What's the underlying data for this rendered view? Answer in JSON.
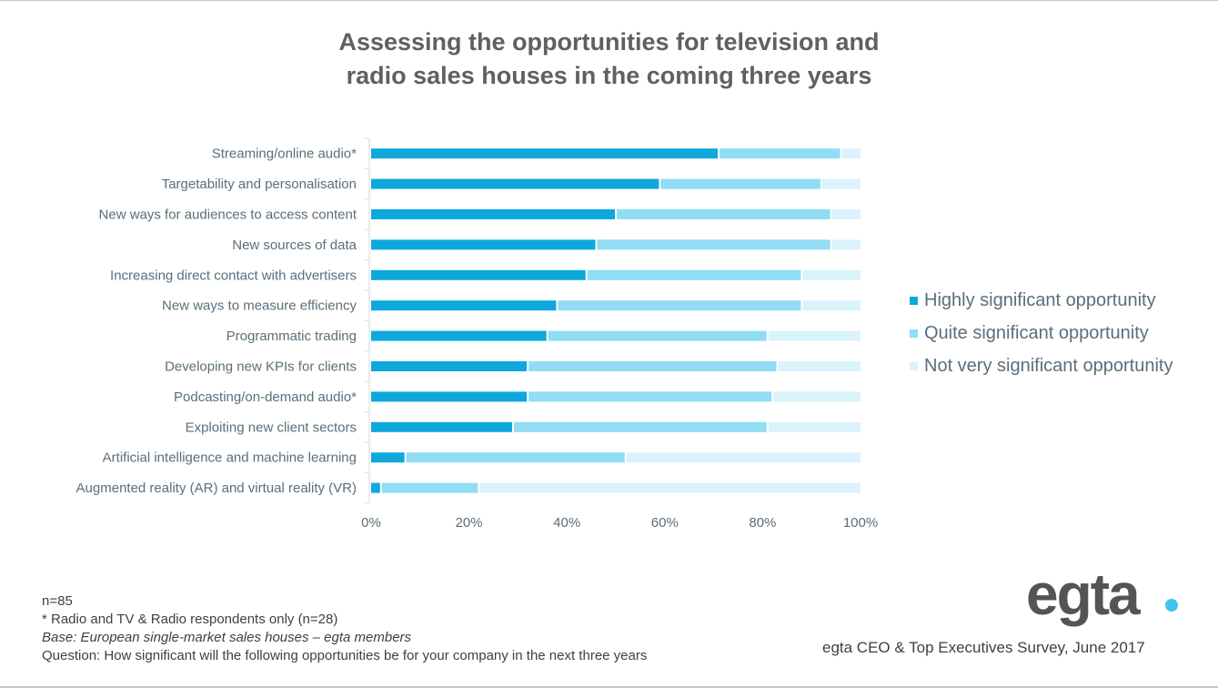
{
  "colors": {
    "highly": "#0ea8dc",
    "quite": "#90ddf5",
    "not_very": "#daf2fb",
    "axis": "#d9d9d9",
    "text": "#5b6e7a",
    "logo_dot": "#3fc4ef"
  },
  "title_lines": [
    "Assessing the opportunities for television and",
    "radio sales houses in the coming three years"
  ],
  "chart_data": {
    "type": "bar",
    "orientation": "horizontal",
    "stacked": "percent",
    "title": "Assessing the opportunities for television and radio sales houses in the coming three years",
    "xlabel": "",
    "ylabel": "",
    "xlim": [
      0,
      100
    ],
    "x_ticks": [
      "0%",
      "20%",
      "40%",
      "60%",
      "80%",
      "100%"
    ],
    "x_tick_values": [
      0,
      20,
      40,
      60,
      80,
      100
    ],
    "grid": false,
    "legend_position": "right",
    "categories": [
      "Streaming/online audio*",
      "Targetability and personalisation",
      "New ways for audiences to access content",
      "New sources of data",
      "Increasing direct contact with advertisers",
      "New ways to measure efficiency",
      "Programmatic trading",
      "Developing new KPIs for clients",
      "Podcasting/on-demand audio*",
      "Exploiting new client sectors",
      "Artificial intelligence and machine learning",
      "Augmented reality (AR) and virtual reality (VR)"
    ],
    "series": [
      {
        "name": "Highly significant opportunity",
        "color_key": "highly",
        "values": [
          71,
          59,
          50,
          46,
          44,
          38,
          36,
          32,
          32,
          29,
          7,
          2
        ]
      },
      {
        "name": "Quite significant opportunity",
        "color_key": "quite",
        "values": [
          25,
          33,
          44,
          48,
          44,
          50,
          45,
          51,
          50,
          52,
          45,
          20
        ]
      },
      {
        "name": "Not very significant opportunity",
        "color_key": "not_very",
        "values": [
          4,
          8,
          6,
          6,
          12,
          12,
          19,
          17,
          18,
          19,
          48,
          78
        ]
      }
    ]
  },
  "notes": {
    "n": "n=85",
    "footnote": "* Radio and TV & Radio respondents only (n=28)",
    "base": "Base: European single-market sales houses – egta members",
    "question": "Question: How significant will the following opportunities be for your company in the next three years"
  },
  "logo_text": "egta",
  "source": "egta CEO & Top Executives Survey, June 2017"
}
